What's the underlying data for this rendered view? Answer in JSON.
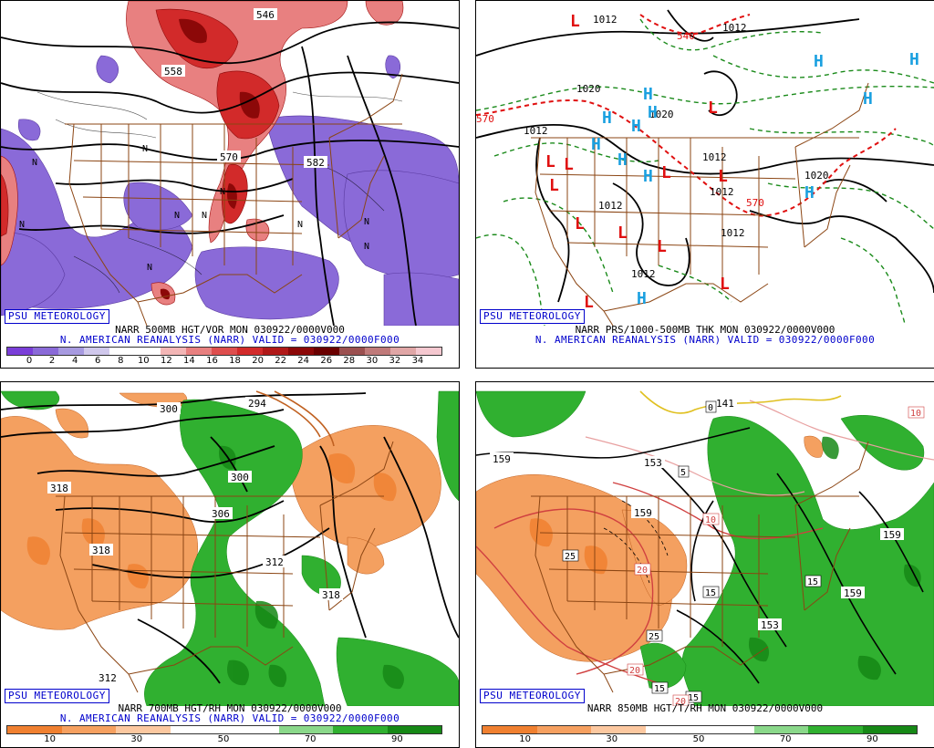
{
  "logo_text": "PSU METEOROLOGY",
  "panels": [
    {
      "caption_line1": "NARR 500MB HGT/VOR MON 030922/0000V000",
      "caption_line2": "N. AMERICAN REANALYSIS (NARR) VALID = 030922/0000F000",
      "colorbar": {
        "colors": [
          "#7a3ed8",
          "#8a6ad8",
          "#a79ae0",
          "#d0c8ec",
          "#ffffff",
          "#ffffff",
          "#f3b6b6",
          "#e88080",
          "#de4e4e",
          "#d22a2a",
          "#b01818",
          "#8c0808",
          "#6a0000",
          "#9b5050",
          "#c07a7a",
          "#e0a6a6",
          "#f5c8d0"
        ],
        "ticks": [
          "0",
          "2",
          "4",
          "6",
          "8",
          "10",
          "12",
          "14",
          "16",
          "18",
          "20",
          "22",
          "24",
          "26",
          "28",
          "30",
          "32",
          "34"
        ]
      },
      "contour_labels": [
        "546",
        "558",
        "570",
        "582"
      ],
      "symbols": [
        "N",
        "N",
        "N",
        "N",
        "N",
        "N",
        "N",
        "N",
        "N",
        "N"
      ]
    },
    {
      "caption_line1": "NARR PRS/1000-500MB THK MON 030922/0000V000",
      "caption_line2": "N. AMERICAN REANALYSIS (NARR) VALID = 030922/0000F000",
      "contour_labels": [
        "1012",
        "1020",
        "1020",
        "1012",
        "1012",
        "1012",
        "1020",
        "1012",
        "1012",
        "1012",
        "1012",
        "540",
        "570",
        "570"
      ],
      "symbols": [
        "H",
        "H",
        "H",
        "H",
        "H",
        "H",
        "H",
        "H",
        "H",
        "H",
        "H",
        "H",
        "L",
        "L",
        "L",
        "L",
        "L",
        "L",
        "L",
        "L",
        "L",
        "L",
        "L",
        "L"
      ]
    },
    {
      "caption_line1": "NARR 700MB HGT/RH MON 030922/0000V000",
      "caption_line2": "N. AMERICAN REANALYSIS (NARR) VALID = 030922/0000F000",
      "colorbar": {
        "colors": [
          "#f08030",
          "#f6a060",
          "#fcc8a0",
          "#ffffff",
          "#ffffff",
          "#8ad88a",
          "#30b030",
          "#168816"
        ],
        "ticks": [
          "10",
          "30",
          "50",
          "70",
          "90"
        ]
      },
      "contour_labels": [
        "294",
        "300",
        "306",
        "312",
        "318",
        "318",
        "318",
        "312",
        "300"
      ]
    },
    {
      "caption_line1": "NARR 850MB HGT/T/RH MON 030922/0000V000",
      "colorbar": {
        "colors": [
          "#f08030",
          "#f6a060",
          "#fcc8a0",
          "#ffffff",
          "#ffffff",
          "#8ad88a",
          "#30b030",
          "#168816"
        ],
        "ticks": [
          "10",
          "30",
          "50",
          "70",
          "90"
        ]
      },
      "contour_labels": [
        "141",
        "159",
        "159",
        "153",
        "159",
        "153",
        "159"
      ],
      "temp_labels": [
        "0",
        "5",
        "10",
        "10",
        "15",
        "15",
        "15",
        "15",
        "20",
        "20",
        "20",
        "25",
        "25"
      ]
    }
  ],
  "colors": {
    "vort_purple": "#8a6ad8",
    "vort_red": "#e04848",
    "dry_orange": "#f4a060",
    "moist_green": "#30b030",
    "county_brown": "#8b4513",
    "high_blue": "#1aa0e0",
    "low_red": "#e01010",
    "thickness_red": "#e01010",
    "isobar_green": "#1a8a1a"
  }
}
